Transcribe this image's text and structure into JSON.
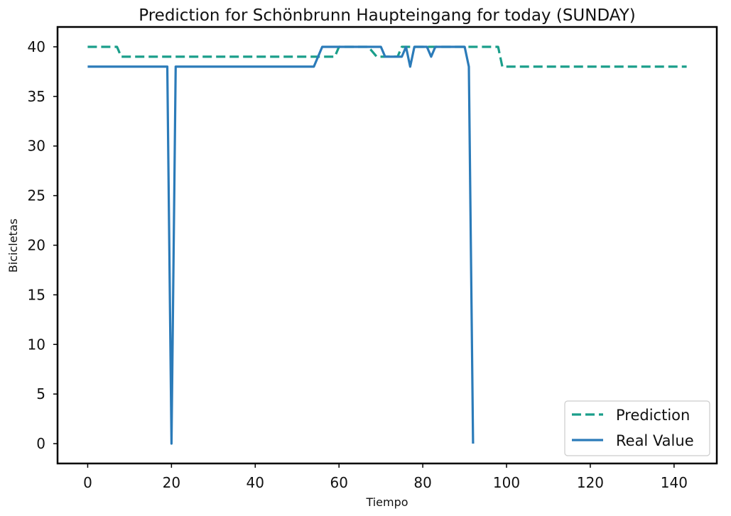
{
  "chart_data": {
    "type": "line",
    "title": "Prediction for Schönbrunn Haupteingang for today (SUNDAY)",
    "xlabel": "Tiempo",
    "ylabel": "Bicicletas",
    "xlim": [
      -7.2,
      150.2
    ],
    "ylim": [
      -2,
      42
    ],
    "xticks": [
      0,
      20,
      40,
      60,
      80,
      100,
      120,
      140
    ],
    "yticks": [
      0,
      5,
      10,
      15,
      20,
      25,
      30,
      35,
      40
    ],
    "grid": false,
    "legend_position": "lower-right",
    "series": [
      {
        "name": "Prediction",
        "style": "dashed",
        "color": "#1a9e8a",
        "x": [
          0,
          7,
          8,
          55,
          59,
          60,
          67,
          69,
          71,
          74,
          75,
          98,
          99,
          143
        ],
        "y": [
          40,
          40,
          39,
          39,
          39,
          40,
          40,
          39,
          39,
          39,
          40,
          40,
          38,
          38
        ]
      },
      {
        "name": "Real Value",
        "style": "solid",
        "color": "#2b7bb9",
        "x": [
          0,
          19,
          20,
          21,
          22,
          54,
          56,
          59,
          60,
          70,
          71,
          75,
          76,
          77,
          78,
          81,
          82,
          83,
          90,
          91,
          92
        ],
        "y": [
          38,
          38,
          0,
          38,
          38,
          38,
          40,
          40,
          40,
          40,
          39,
          39,
          40,
          38,
          40,
          40,
          39,
          40,
          40,
          38,
          0
        ]
      }
    ]
  }
}
